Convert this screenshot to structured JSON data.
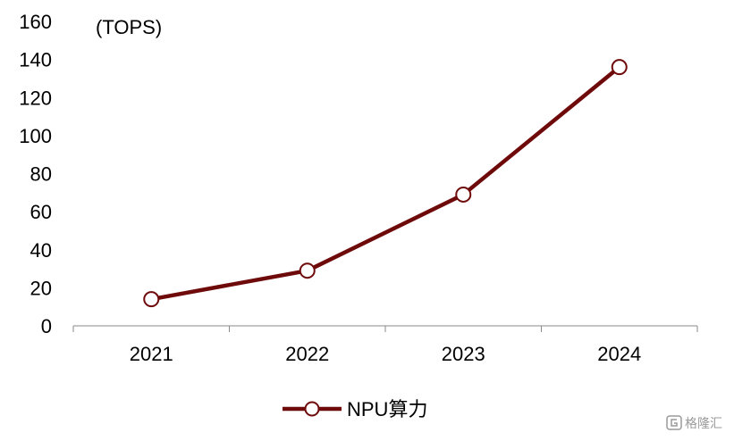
{
  "chart_data": {
    "type": "line",
    "unit_label": "(TOPS)",
    "categories": [
      "2021",
      "2022",
      "2023",
      "2024"
    ],
    "series": [
      {
        "name": "NPU算力",
        "values": [
          14,
          29,
          69,
          136
        ],
        "color": "#6e0a0a",
        "marker": "hollow-circle"
      }
    ],
    "ylim": [
      0,
      160
    ],
    "yticks": [
      "0",
      "20",
      "40",
      "60",
      "80",
      "100",
      "120",
      "140",
      "160"
    ],
    "grid": false,
    "legend_position": "bottom-center"
  },
  "watermark": {
    "text": "格隆汇",
    "icon": "glh-logo-icon",
    "color": "#9a9a9a"
  }
}
